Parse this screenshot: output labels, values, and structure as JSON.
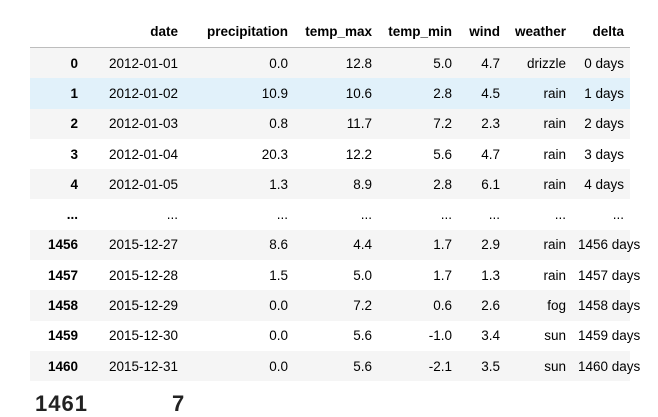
{
  "table": {
    "columns": [
      "",
      "date",
      "precipitation",
      "temp_max",
      "temp_min",
      "wind",
      "weather",
      "delta"
    ],
    "rows": [
      {
        "index": "0",
        "cells": [
          "2012-01-01",
          "0.0",
          "12.8",
          "5.0",
          "4.7",
          "drizzle",
          "0 days"
        ]
      },
      {
        "index": "1",
        "cells": [
          "2012-01-02",
          "10.9",
          "10.6",
          "2.8",
          "4.5",
          "rain",
          "1 days"
        ]
      },
      {
        "index": "2",
        "cells": [
          "2012-01-03",
          "0.8",
          "11.7",
          "7.2",
          "2.3",
          "rain",
          "2 days"
        ]
      },
      {
        "index": "3",
        "cells": [
          "2012-01-04",
          "20.3",
          "12.2",
          "5.6",
          "4.7",
          "rain",
          "3 days"
        ]
      },
      {
        "index": "4",
        "cells": [
          "2012-01-05",
          "1.3",
          "8.9",
          "2.8",
          "6.1",
          "rain",
          "4 days"
        ]
      },
      {
        "index": "...",
        "cells": [
          "...",
          "...",
          "...",
          "...",
          "...",
          "...",
          "..."
        ]
      },
      {
        "index": "1456",
        "cells": [
          "2015-12-27",
          "8.6",
          "4.4",
          "1.7",
          "2.9",
          "rain",
          "1456 days"
        ]
      },
      {
        "index": "1457",
        "cells": [
          "2015-12-28",
          "1.5",
          "5.0",
          "1.7",
          "1.3",
          "rain",
          "1457 days"
        ]
      },
      {
        "index": "1458",
        "cells": [
          "2015-12-29",
          "0.0",
          "7.2",
          "0.6",
          "2.6",
          "fog",
          "1458 days"
        ]
      },
      {
        "index": "1459",
        "cells": [
          "2015-12-30",
          "0.0",
          "5.6",
          "-1.0",
          "3.4",
          "sun",
          "1459 days"
        ]
      },
      {
        "index": "1460",
        "cells": [
          "2015-12-31",
          "0.0",
          "5.6",
          "-2.1",
          "3.5",
          "sun",
          "1460 days"
        ]
      }
    ],
    "highlighted_row": 1
  },
  "footer": {
    "rows_text": "1461",
    "cols_text": "7"
  },
  "colors": {
    "odd_row": "#f5f5f5",
    "hover_row": "#e1f1fa",
    "header_border": "#bdbdbd"
  }
}
